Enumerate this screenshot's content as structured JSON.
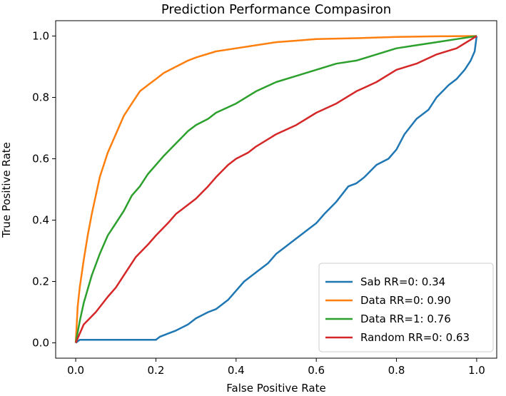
{
  "chart_data": {
    "type": "line",
    "title": "Prediction Performance Compasiron",
    "xlabel": "False Positive Rate",
    "ylabel": "True Positive Rate",
    "xlim": [
      -0.05,
      1.05
    ],
    "ylim": [
      -0.05,
      1.05
    ],
    "xticks": [
      "0.0",
      "0.2",
      "0.4",
      "0.6",
      "0.8",
      "1.0"
    ],
    "yticks": [
      "0.0",
      "0.2",
      "0.4",
      "0.6",
      "0.8",
      "1.0"
    ],
    "grid": false,
    "legend_position": "lower right",
    "series": [
      {
        "name": "Sab RR=0: 0.34",
        "color": "#1f77b4",
        "x": [
          0.0,
          0.01,
          0.05,
          0.1,
          0.15,
          0.2,
          0.21,
          0.23,
          0.25,
          0.28,
          0.3,
          0.33,
          0.35,
          0.38,
          0.4,
          0.42,
          0.45,
          0.48,
          0.5,
          0.52,
          0.55,
          0.58,
          0.6,
          0.62,
          0.65,
          0.68,
          0.7,
          0.72,
          0.75,
          0.78,
          0.8,
          0.82,
          0.85,
          0.88,
          0.9,
          0.93,
          0.95,
          0.97,
          0.985,
          0.995,
          1.0
        ],
        "y": [
          0.0,
          0.01,
          0.01,
          0.01,
          0.01,
          0.01,
          0.02,
          0.03,
          0.04,
          0.06,
          0.08,
          0.1,
          0.11,
          0.14,
          0.17,
          0.2,
          0.23,
          0.26,
          0.29,
          0.31,
          0.34,
          0.37,
          0.39,
          0.42,
          0.46,
          0.51,
          0.52,
          0.54,
          0.58,
          0.6,
          0.63,
          0.68,
          0.73,
          0.76,
          0.8,
          0.84,
          0.86,
          0.89,
          0.92,
          0.95,
          1.0
        ]
      },
      {
        "name": "Data RR=0: 0.90",
        "color": "#ff7f0e",
        "x": [
          0.0,
          0.005,
          0.01,
          0.02,
          0.03,
          0.04,
          0.05,
          0.06,
          0.07,
          0.08,
          0.1,
          0.12,
          0.14,
          0.16,
          0.18,
          0.2,
          0.22,
          0.25,
          0.28,
          0.3,
          0.35,
          0.4,
          0.45,
          0.5,
          0.55,
          0.6,
          0.7,
          0.8,
          0.9,
          1.0
        ],
        "y": [
          0.0,
          0.12,
          0.18,
          0.27,
          0.35,
          0.42,
          0.48,
          0.54,
          0.58,
          0.62,
          0.68,
          0.74,
          0.78,
          0.82,
          0.84,
          0.86,
          0.88,
          0.9,
          0.92,
          0.93,
          0.95,
          0.96,
          0.97,
          0.98,
          0.985,
          0.99,
          0.993,
          0.997,
          0.999,
          1.0
        ]
      },
      {
        "name": "Data RR=1: 0.76",
        "color": "#2ca02c",
        "x": [
          0.0,
          0.01,
          0.02,
          0.04,
          0.06,
          0.08,
          0.1,
          0.12,
          0.14,
          0.16,
          0.18,
          0.2,
          0.22,
          0.25,
          0.28,
          0.3,
          0.33,
          0.35,
          0.4,
          0.45,
          0.5,
          0.55,
          0.6,
          0.65,
          0.7,
          0.75,
          0.8,
          0.85,
          0.9,
          0.95,
          1.0
        ],
        "y": [
          0.0,
          0.07,
          0.13,
          0.22,
          0.29,
          0.35,
          0.39,
          0.43,
          0.48,
          0.51,
          0.55,
          0.58,
          0.61,
          0.65,
          0.69,
          0.71,
          0.73,
          0.75,
          0.78,
          0.82,
          0.85,
          0.87,
          0.89,
          0.91,
          0.92,
          0.94,
          0.96,
          0.97,
          0.98,
          0.99,
          1.0
        ]
      },
      {
        "name": "Random RR=0: 0.63",
        "color": "#d62728",
        "x": [
          0.0,
          0.02,
          0.05,
          0.08,
          0.1,
          0.13,
          0.15,
          0.18,
          0.2,
          0.23,
          0.25,
          0.28,
          0.3,
          0.33,
          0.35,
          0.38,
          0.4,
          0.43,
          0.45,
          0.5,
          0.55,
          0.6,
          0.65,
          0.7,
          0.75,
          0.8,
          0.85,
          0.9,
          0.95,
          1.0
        ],
        "y": [
          0.0,
          0.06,
          0.1,
          0.15,
          0.18,
          0.24,
          0.28,
          0.32,
          0.35,
          0.39,
          0.42,
          0.45,
          0.47,
          0.51,
          0.54,
          0.58,
          0.6,
          0.62,
          0.64,
          0.68,
          0.71,
          0.75,
          0.78,
          0.82,
          0.85,
          0.89,
          0.91,
          0.94,
          0.96,
          1.0
        ]
      }
    ]
  }
}
